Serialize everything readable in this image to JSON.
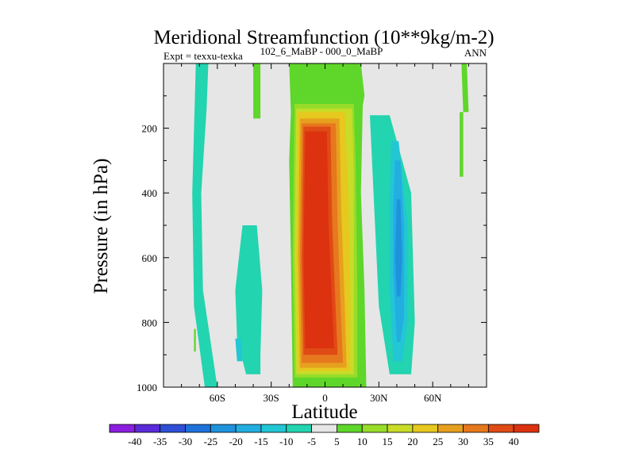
{
  "chart_data": {
    "type": "heatmap",
    "title": "Meridional Streamfunction (10**9kg/m-2)",
    "subtitle_left": "Expt = texxu-texka",
    "subtitle_center": "102_6_MaBP - 000_0_MaBP",
    "subtitle_right": "ANN",
    "xlabel": "Latitude",
    "ylabel": "Pressure (in hPa)",
    "xlim": [
      -90,
      90
    ],
    "ylim": [
      1000,
      0
    ],
    "x_ticks": [
      {
        "value": -60,
        "label": "60S"
      },
      {
        "value": -30,
        "label": "30S"
      },
      {
        "value": 0,
        "label": "0"
      },
      {
        "value": 30,
        "label": "30N"
      },
      {
        "value": 60,
        "label": "60N"
      }
    ],
    "y_ticks": [
      {
        "value": 200,
        "label": "200"
      },
      {
        "value": 400,
        "label": "400"
      },
      {
        "value": 600,
        "label": "600"
      },
      {
        "value": 800,
        "label": "800"
      },
      {
        "value": 1000,
        "label": "1000"
      }
    ],
    "zero_band_color": "#e6e6e6",
    "colorbar": {
      "levels": [
        -40,
        -35,
        -30,
        -25,
        -20,
        -15,
        -10,
        -5,
        5,
        10,
        15,
        20,
        25,
        30,
        35,
        40
      ],
      "labels": [
        "-40",
        "-35",
        "-30",
        "-25",
        "-20",
        "-15",
        "-10",
        "-5",
        "5",
        "10",
        "15",
        "20",
        "25",
        "30",
        "35",
        "40"
      ],
      "colors": [
        "#8c1ee0",
        "#5a2ad8",
        "#2f4fd6",
        "#1f72d9",
        "#1f92dc",
        "#22aee0",
        "#22c6d4",
        "#23d4b0",
        "#e6e6e6",
        "#5fd62a",
        "#98dc2a",
        "#c8dc28",
        "#e6c81e",
        "#e6a01e",
        "#e6781e",
        "#e04a14",
        "#dc3210"
      ]
    },
    "regions": [
      {
        "name": "sh-polar-cell",
        "color": "#23d4b0",
        "points": [
          [
            -72,
            0
          ],
          [
            -65,
            0
          ],
          [
            -66,
            140
          ],
          [
            -69,
            400
          ],
          [
            -68,
            700
          ],
          [
            -60,
            1000
          ],
          [
            -67,
            1000
          ],
          [
            -73,
            750
          ],
          [
            -74,
            400
          ]
        ]
      },
      {
        "name": "sh-ferrel-cell",
        "color": "#23d4b0",
        "points": [
          [
            -46,
            500
          ],
          [
            -38,
            500
          ],
          [
            -35,
            700
          ],
          [
            -36,
            900
          ],
          [
            -36,
            960
          ],
          [
            -44,
            960
          ],
          [
            -49,
            850
          ],
          [
            -50,
            700
          ]
        ]
      },
      {
        "name": "sh-ferrel-core",
        "color": "#22c6d4",
        "points": [
          [
            -50,
            850
          ],
          [
            -47,
            850
          ],
          [
            -46,
            920
          ],
          [
            -49,
            920
          ]
        ]
      },
      {
        "name": "sh-upper-positive",
        "color": "#5fd62a",
        "points": [
          [
            -40,
            0
          ],
          [
            -36,
            0
          ],
          [
            -36,
            170
          ],
          [
            -40,
            170
          ]
        ]
      },
      {
        "name": "hadley-outer",
        "color": "#5fd62a",
        "points": [
          [
            -20,
            0
          ],
          [
            20,
            0
          ],
          [
            22,
            100
          ],
          [
            21,
            130
          ],
          [
            20,
            400
          ],
          [
            22,
            700
          ],
          [
            23,
            1000
          ],
          [
            -18,
            1000
          ],
          [
            -19,
            600
          ],
          [
            -20,
            300
          ],
          [
            -19,
            150
          ]
        ]
      },
      {
        "name": "hadley-15",
        "color": "#98dc2a",
        "points": [
          [
            -17,
            125
          ],
          [
            16,
            125
          ],
          [
            17,
            300
          ],
          [
            18,
            700
          ],
          [
            18,
            970
          ],
          [
            -17,
            970
          ],
          [
            -18,
            600
          ]
        ]
      },
      {
        "name": "hadley-20",
        "color": "#c8dc28",
        "points": [
          [
            -16,
            140
          ],
          [
            15,
            140
          ],
          [
            16,
            330
          ],
          [
            16,
            700
          ],
          [
            16,
            960
          ],
          [
            -16,
            960
          ],
          [
            -17,
            600
          ]
        ]
      },
      {
        "name": "hadley-25",
        "color": "#e6c81e",
        "points": [
          [
            -15,
            150
          ],
          [
            11,
            150
          ],
          [
            13,
            400
          ],
          [
            14,
            700
          ],
          [
            14,
            950
          ],
          [
            -15,
            950
          ],
          [
            -16,
            600
          ]
        ]
      },
      {
        "name": "hadley-30",
        "color": "#e6a01e",
        "points": [
          [
            -14,
            170
          ],
          [
            8,
            170
          ],
          [
            9,
            450
          ],
          [
            11,
            750
          ],
          [
            12,
            940
          ],
          [
            -14,
            940
          ],
          [
            -15,
            600
          ]
        ]
      },
      {
        "name": "hadley-35",
        "color": "#e6781e",
        "points": [
          [
            -13,
            185
          ],
          [
            6,
            185
          ],
          [
            7,
            500
          ],
          [
            9,
            800
          ],
          [
            10,
            925
          ],
          [
            -13,
            925
          ],
          [
            -14,
            600
          ]
        ]
      },
      {
        "name": "hadley-40",
        "color": "#e04a14",
        "points": [
          [
            -12,
            195
          ],
          [
            3,
            195
          ],
          [
            4,
            500
          ],
          [
            7,
            900
          ],
          [
            -12,
            900
          ],
          [
            -13,
            600
          ]
        ]
      },
      {
        "name": "hadley-core",
        "color": "#dc3210",
        "points": [
          [
            -11,
            210
          ],
          [
            1,
            210
          ],
          [
            2,
            500
          ],
          [
            5,
            880
          ],
          [
            -11,
            880
          ],
          [
            -12,
            600
          ]
        ]
      },
      {
        "name": "nh-ferrel-outer",
        "color": "#23d4b0",
        "points": [
          [
            25,
            160
          ],
          [
            36,
            160
          ],
          [
            48,
            400
          ],
          [
            50,
            800
          ],
          [
            48,
            960
          ],
          [
            36,
            960
          ],
          [
            30,
            750
          ],
          [
            27,
            400
          ]
        ]
      },
      {
        "name": "nh-ferrel-10",
        "color": "#22c6d4",
        "points": [
          [
            37,
            240
          ],
          [
            41,
            240
          ],
          [
            46,
            500
          ],
          [
            46,
            800
          ],
          [
            43,
            920
          ],
          [
            38,
            920
          ],
          [
            36,
            700
          ],
          [
            36,
            400
          ]
        ]
      },
      {
        "name": "nh-ferrel-15",
        "color": "#22aee0",
        "points": [
          [
            39,
            300
          ],
          [
            42,
            300
          ],
          [
            44,
            500
          ],
          [
            44,
            780
          ],
          [
            42,
            860
          ],
          [
            40,
            860
          ],
          [
            38,
            650
          ],
          [
            38,
            450
          ]
        ]
      },
      {
        "name": "nh-ferrel-20",
        "color": "#1f92dc",
        "points": [
          [
            40,
            420
          ],
          [
            42,
            420
          ],
          [
            43,
            600
          ],
          [
            42,
            720
          ],
          [
            40,
            720
          ],
          [
            39,
            600
          ]
        ]
      },
      {
        "name": "nh-polar-positive",
        "color": "#5fd62a",
        "points": [
          [
            76,
            0
          ],
          [
            79,
            0
          ],
          [
            80,
            150
          ],
          [
            77,
            150
          ]
        ]
      },
      {
        "name": "nh-small-positive",
        "color": "#5fd62a",
        "points": [
          [
            75,
            150
          ],
          [
            77,
            150
          ],
          [
            77,
            350
          ],
          [
            75,
            350
          ]
        ]
      },
      {
        "name": "sh-small-positive",
        "color": "#5fd62a",
        "points": [
          [
            -73,
            820
          ],
          [
            -72,
            820
          ],
          [
            -72,
            890
          ],
          [
            -73,
            890
          ]
        ]
      }
    ]
  }
}
